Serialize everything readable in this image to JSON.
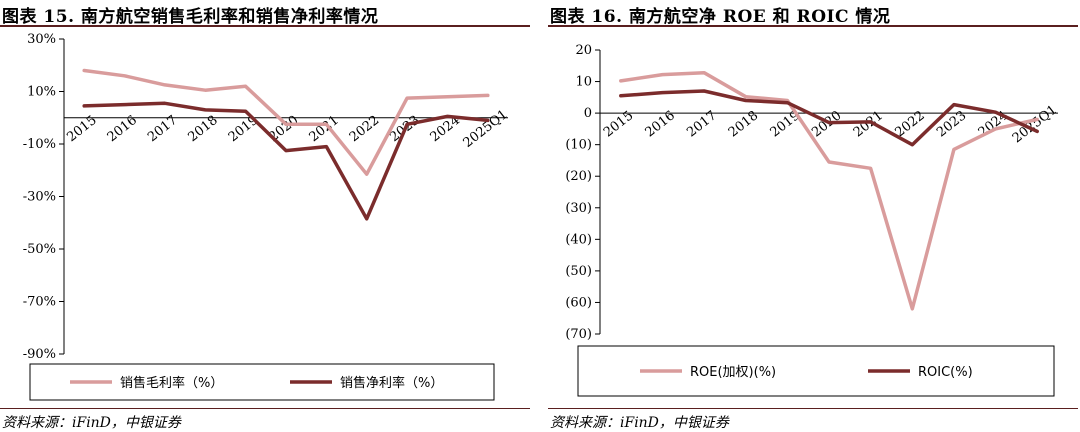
{
  "left": {
    "title": "图表 15. 南方航空销售毛利率和销售净利率情况",
    "source": "资料来源：iFinD，中银证券"
  },
  "right": {
    "title": "图表 16. 南方航空净 ROE 和 ROIC 情况",
    "source": "资料来源：iFinD，中银证券"
  },
  "chart_data": [
    {
      "type": "line",
      "title": "",
      "categories": [
        "2015",
        "2016",
        "2017",
        "2018",
        "2019",
        "2020",
        "2021",
        "2022",
        "2023",
        "2024",
        "2025Q1"
      ],
      "series": [
        {
          "name": "销售毛利率（%）",
          "color": "#d99c9c",
          "values": [
            18.0,
            16.0,
            12.5,
            10.5,
            12.0,
            -2.5,
            -2.5,
            -21.5,
            7.5,
            8.0,
            8.5
          ]
        },
        {
          "name": "销售净利率（%）",
          "color": "#7b2c2c",
          "values": [
            4.5,
            5.0,
            5.5,
            3.0,
            2.5,
            -12.5,
            -11.0,
            -38.5,
            -2.5,
            0.5,
            -1.0
          ]
        }
      ],
      "yticks": [
        "30%",
        "10%",
        "-10%",
        "-30%",
        "-50%",
        "-70%",
        "-90%"
      ],
      "ytick_values": [
        30,
        10,
        -10,
        -30,
        -50,
        -70,
        -90
      ],
      "ylim": [
        -90,
        30
      ],
      "zero_line": 0,
      "legend_position": "bottom",
      "grid": false
    },
    {
      "type": "line",
      "title": "",
      "categories": [
        "2015",
        "2016",
        "2017",
        "2018",
        "2019",
        "2020",
        "2021",
        "2022",
        "2023",
        "2024",
        "2025Q1"
      ],
      "series": [
        {
          "name": "ROE(加权)(%)",
          "color": "#d99c9c",
          "values": [
            10.2,
            12.2,
            12.8,
            5.2,
            4.0,
            -15.5,
            -17.5,
            -62.0,
            -11.5,
            -5.0,
            -2.0
          ]
        },
        {
          "name": "ROIC(%)",
          "color": "#7b2c2c",
          "values": [
            5.5,
            6.5,
            7.0,
            4.0,
            3.3,
            -3.0,
            -2.8,
            -10.0,
            2.7,
            0.3,
            -5.8
          ]
        }
      ],
      "yticks": [
        "20",
        "10",
        "0",
        "(10)",
        "(20)",
        "(30)",
        "(40)",
        "(50)",
        "(60)",
        "(70)"
      ],
      "ytick_values": [
        20,
        10,
        0,
        -10,
        -20,
        -30,
        -40,
        -50,
        -60,
        -70
      ],
      "negative_tick_color": "#cc0000",
      "ylim": [
        -70,
        20
      ],
      "zero_line": 0,
      "legend_position": "bottom",
      "grid": false
    }
  ]
}
